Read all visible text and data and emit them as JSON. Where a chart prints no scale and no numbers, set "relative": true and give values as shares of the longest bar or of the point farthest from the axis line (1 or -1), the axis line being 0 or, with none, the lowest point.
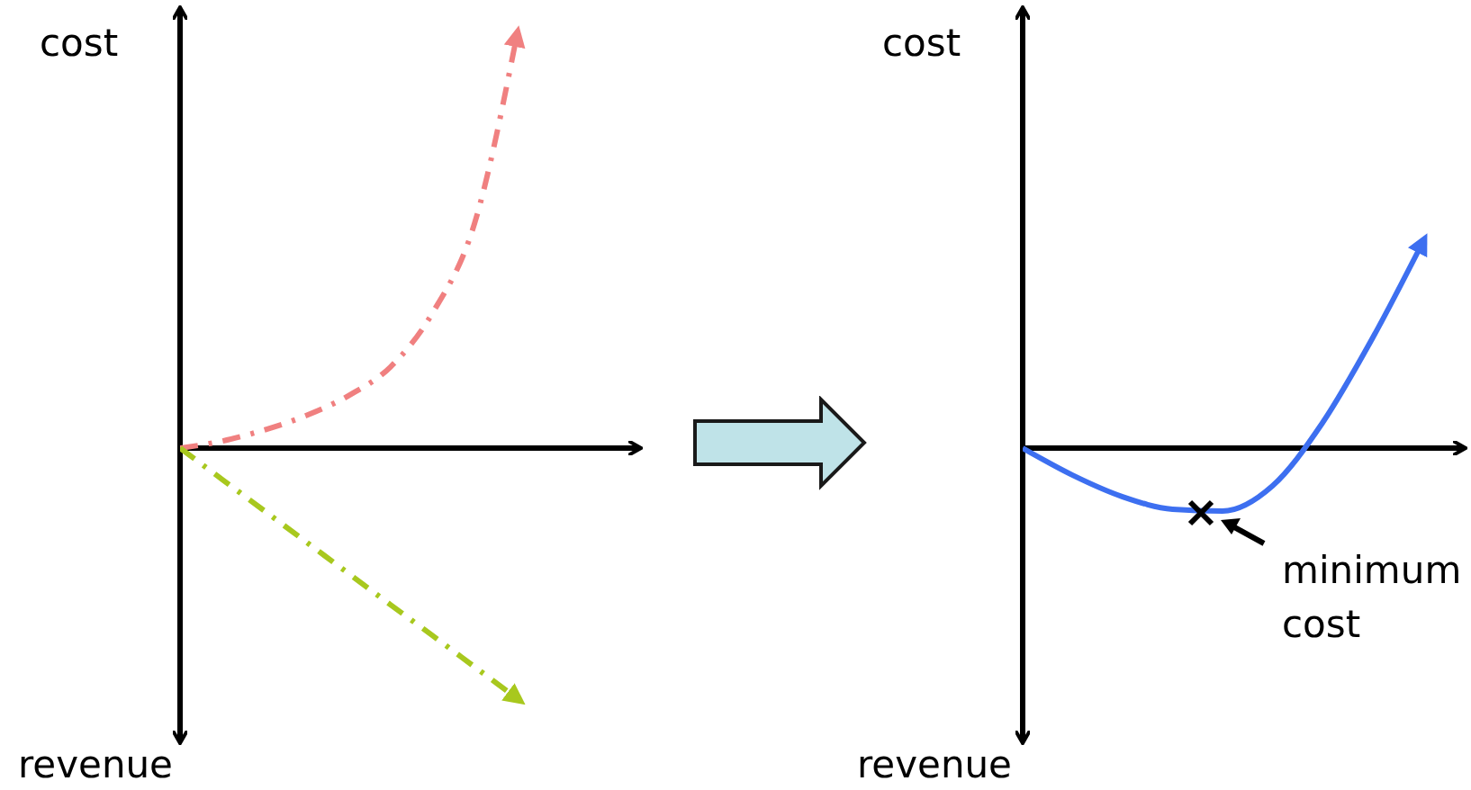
{
  "chart_data": [
    {
      "type": "line",
      "relative": true,
      "ylabel": "cost",
      "annotations": [
        "revenue"
      ],
      "line_style": "dashed",
      "categories": [
        null,
        null,
        null,
        null,
        null,
        null,
        null,
        null,
        null
      ],
      "series": [
        {
          "color": "#f08080",
          "values": [
            0,
            0.017,
            0.044,
            0.079,
            0.127,
            0.197,
            0.328,
            0.546,
            1
          ]
        },
        {
          "color": "#a8c81e",
          "values": [
            0,
            -0.076,
            -0.152,
            -0.228,
            -0.304,
            -0.38,
            -0.455,
            -0.531,
            -0.607
          ]
        }
      ]
    },
    {
      "type": "line",
      "relative": true,
      "ylabel": "cost",
      "annotations": [
        "revenue",
        "minimum cost"
      ],
      "categories": [
        null,
        null,
        null,
        null,
        null,
        null,
        null,
        null,
        null
      ],
      "series": [
        {
          "color": "#3d6ff0",
          "values": [
            0,
            -0.132,
            -0.237,
            -0.298,
            -0.307,
            -0.184,
            0.123,
            0.535,
            1
          ]
        }
      ]
    }
  ]
}
